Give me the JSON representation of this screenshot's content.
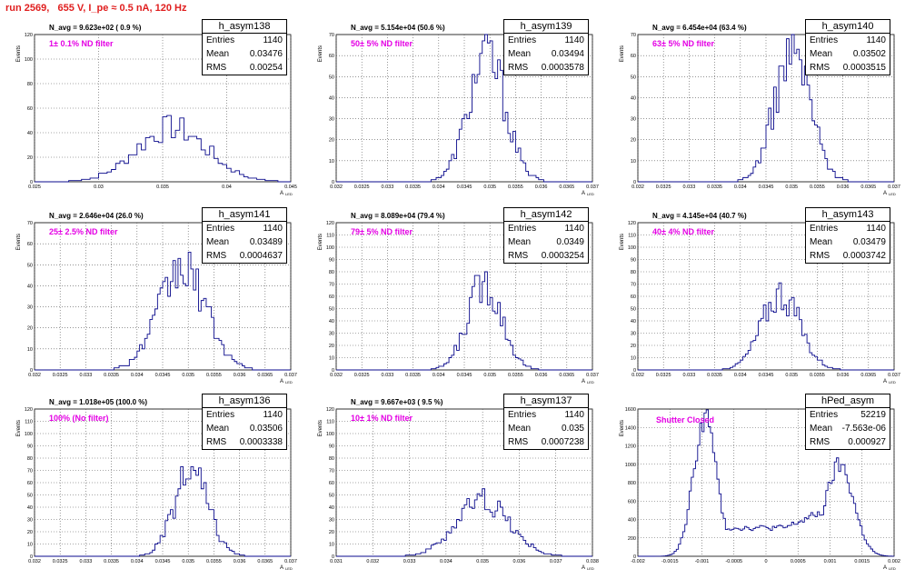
{
  "header": {
    "title": "run 2569,   655 V, I_pe ≈ 0.5 nA, 120 Hz"
  },
  "labels": {
    "entries": "Entries",
    "mean": "Mean",
    "rms": "RMS",
    "y_axis": "Events",
    "x_axis": "A",
    "x_axis_sub": "LED"
  },
  "colors": {
    "histogram": "#0a0a8c",
    "header": "#e01e1e",
    "note": "#e400e4",
    "grid": "#555555"
  },
  "chart_data": [
    {
      "type": "bar",
      "title": "h_asym138",
      "stats": {
        "entries": "1140",
        "mean": "0.03476",
        "rms": "0.00254"
      },
      "navg": "N_avg = 9.623e+02 ( 0.9 %)",
      "note": "1± 0.1% ND filter",
      "xlim": [
        0.023,
        0.045
      ],
      "ylim": [
        0,
        120
      ],
      "xticks": [
        "0.025",
        "0.03",
        "0.035",
        "0.04",
        "0.045"
      ],
      "yticks": [
        "0",
        "20",
        "40",
        "60",
        "80",
        "100",
        "120"
      ],
      "peak_x": 0.0348,
      "width": 0.003,
      "peak_y": 44,
      "bins": 60
    },
    {
      "type": "bar",
      "title": "h_asym139",
      "stats": {
        "entries": "1140",
        "mean": "0.03494",
        "rms": "0.0003578"
      },
      "navg": "N_avg = 5.154e+04 (50.6 %)",
      "note": "50± 5% ND filter",
      "xlim": [
        0.032,
        0.037
      ],
      "ylim": [
        0,
        70
      ],
      "xticks": [
        "0.032",
        "0.0325",
        "0.033",
        "0.0335",
        "0.034",
        "0.0345",
        "0.035",
        "0.0355",
        "0.036",
        "0.0365",
        "0.037"
      ],
      "yticks": [
        "0",
        "10",
        "20",
        "30",
        "40",
        "50",
        "60",
        "70"
      ],
      "peak_x": 0.03494,
      "width": 0.00036,
      "peak_y": 60,
      "bins": 100
    },
    {
      "type": "bar",
      "title": "h_asym140",
      "stats": {
        "entries": "1140",
        "mean": "0.03502",
        "rms": "0.0003515"
      },
      "navg": "N_avg = 6.454e+04 (63.4 %)",
      "note": "63± 5% ND filter",
      "xlim": [
        0.032,
        0.037
      ],
      "ylim": [
        0,
        70
      ],
      "xticks": [
        "0.032",
        "0.0325",
        "0.033",
        "0.0335",
        "0.034",
        "0.0345",
        "0.035",
        "0.0355",
        "0.036",
        "0.0365",
        "0.037"
      ],
      "yticks": [
        "0",
        "10",
        "20",
        "30",
        "40",
        "50",
        "60",
        "70"
      ],
      "peak_x": 0.03502,
      "width": 0.00035,
      "peak_y": 62,
      "bins": 100
    },
    {
      "type": "bar",
      "title": "h_asym141",
      "stats": {
        "entries": "1140",
        "mean": "0.03489",
        "rms": "0.0004637"
      },
      "navg": "N_avg = 2.646e+04 (26.0 %)",
      "note": "25± 2.5% ND filter",
      "xlim": [
        0.032,
        0.037
      ],
      "ylim": [
        0,
        70
      ],
      "xticks": [
        "0.032",
        "0.0325",
        "0.033",
        "0.0335",
        "0.034",
        "0.0345",
        "0.035",
        "0.0355",
        "0.036",
        "0.0365",
        "0.037"
      ],
      "yticks": [
        "0",
        "10",
        "20",
        "30",
        "40",
        "50",
        "60",
        "70"
      ],
      "peak_x": 0.03489,
      "width": 0.00046,
      "peak_y": 48,
      "bins": 100
    },
    {
      "type": "bar",
      "title": "h_asym142",
      "stats": {
        "entries": "1140",
        "mean": "0.0349",
        "rms": "0.0003254"
      },
      "navg": "N_avg = 8.089e+04 (79.4 %)",
      "note": "79± 5% ND filter",
      "xlim": [
        0.032,
        0.037
      ],
      "ylim": [
        0,
        120
      ],
      "xticks": [
        "0.032",
        "0.0325",
        "0.033",
        "0.0335",
        "0.034",
        "0.0345",
        "0.035",
        "0.0355",
        "0.036",
        "0.0365",
        "0.037"
      ],
      "yticks": [
        "0",
        "10",
        "20",
        "30",
        "40",
        "50",
        "60",
        "70",
        "80",
        "90",
        "100",
        "110",
        "120"
      ],
      "peak_x": 0.0349,
      "width": 0.00033,
      "peak_y": 72,
      "bins": 100
    },
    {
      "type": "bar",
      "title": "h_asym143",
      "stats": {
        "entries": "1140",
        "mean": "0.03479",
        "rms": "0.0003742"
      },
      "navg": "N_avg = 4.145e+04 (40.7 %)",
      "note": "40± 4% ND filter",
      "xlim": [
        0.032,
        0.037
      ],
      "ylim": [
        0,
        120
      ],
      "xticks": [
        "0.032",
        "0.0325",
        "0.033",
        "0.0335",
        "0.034",
        "0.0345",
        "0.035",
        "0.0355",
        "0.036",
        "0.0365",
        "0.037"
      ],
      "yticks": [
        "0",
        "10",
        "20",
        "30",
        "40",
        "50",
        "60",
        "70",
        "80",
        "90",
        "100",
        "110",
        "120"
      ],
      "peak_x": 0.03479,
      "width": 0.00037,
      "peak_y": 62,
      "bins": 100
    },
    {
      "type": "bar",
      "title": "h_asym136",
      "stats": {
        "entries": "1140",
        "mean": "0.03506",
        "rms": "0.0003338"
      },
      "navg": "N_avg = 1.018e+05 (100.0 %)",
      "note": "100% (No filter)",
      "xlim": [
        0.032,
        0.037
      ],
      "ylim": [
        0,
        120
      ],
      "xticks": [
        "0.032",
        "0.0325",
        "0.033",
        "0.0335",
        "0.034",
        "0.0345",
        "0.035",
        "0.0355",
        "0.036",
        "0.0365",
        "0.037"
      ],
      "yticks": [
        "0",
        "10",
        "20",
        "30",
        "40",
        "50",
        "60",
        "70",
        "80",
        "90",
        "100",
        "110",
        "120"
      ],
      "peak_x": 0.03506,
      "width": 0.00033,
      "peak_y": 68,
      "bins": 100
    },
    {
      "type": "bar",
      "title": "h_asym137",
      "stats": {
        "entries": "1140",
        "mean": "0.035",
        "rms": "0.0007238"
      },
      "navg": "N_avg = 9.667e+03 ( 9.5 %)",
      "note": "10± 1% ND filter",
      "xlim": [
        0.031,
        0.038
      ],
      "ylim": [
        0,
        120
      ],
      "xticks": [
        "0.031",
        "0.032",
        "0.033",
        "0.034",
        "0.035",
        "0.036",
        "0.037",
        "0.038"
      ],
      "yticks": [
        "0",
        "10",
        "20",
        "30",
        "40",
        "50",
        "60",
        "70",
        "80",
        "90",
        "100",
        "110",
        "120"
      ],
      "peak_x": 0.035,
      "width": 0.00072,
      "peak_y": 46,
      "bins": 100
    },
    {
      "type": "line",
      "title": "hPed_asym",
      "stats": {
        "entries": "52219",
        "mean": "-7.563e-06",
        "rms": "0.000927"
      },
      "navg": "",
      "note": "Shutter Closed",
      "xlim": [
        -0.002,
        0.002
      ],
      "ylim": [
        0,
        1700
      ],
      "xticks": [
        "-0.002",
        "-0.0015",
        "-0.001",
        "-0.0005",
        "0",
        "0.0005",
        "0.001",
        "0.0015",
        "0.002"
      ],
      "yticks": [
        "0",
        "200",
        "400",
        "600",
        "800",
        "1000",
        "1200",
        "1400",
        "1600"
      ],
      "bimodal": true,
      "bins": 120
    }
  ]
}
